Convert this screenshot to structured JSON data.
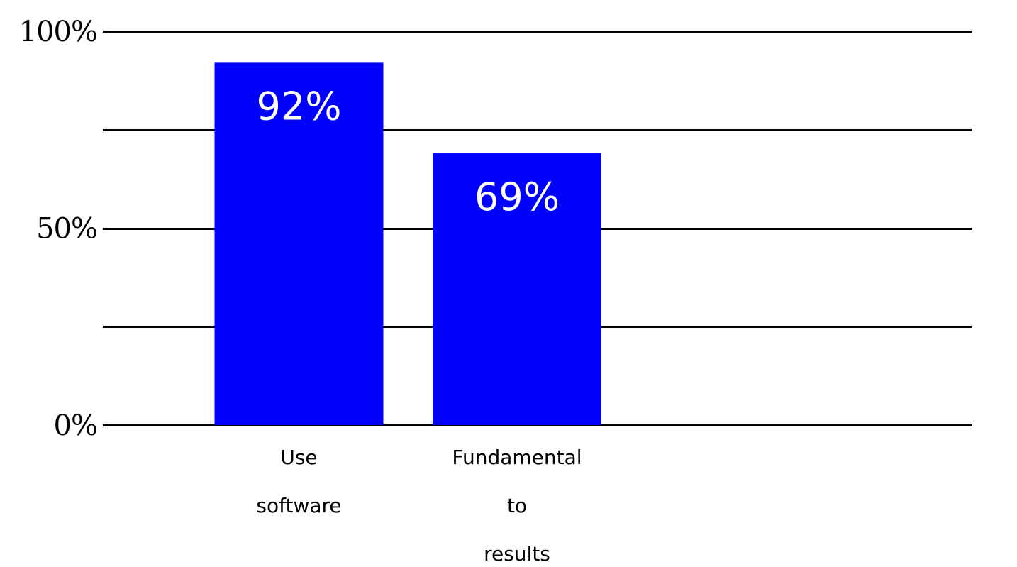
{
  "chart_data": {
    "type": "bar",
    "categories": [
      [
        "Use",
        "software"
      ],
      [
        "Fundamental",
        "to",
        "results"
      ]
    ],
    "values": [
      92,
      69
    ],
    "data_labels": [
      "92%",
      "69%"
    ],
    "ylim": [
      0,
      100
    ],
    "yticks": [
      0,
      50,
      100
    ],
    "ytick_labels": [
      "0%",
      "50%",
      "100%"
    ],
    "gridlines": [
      0,
      25,
      50,
      75,
      100
    ],
    "grid": true,
    "bar_color": "#0000FF",
    "label_color": "#FFFFFF",
    "grid_color": "#000000"
  }
}
